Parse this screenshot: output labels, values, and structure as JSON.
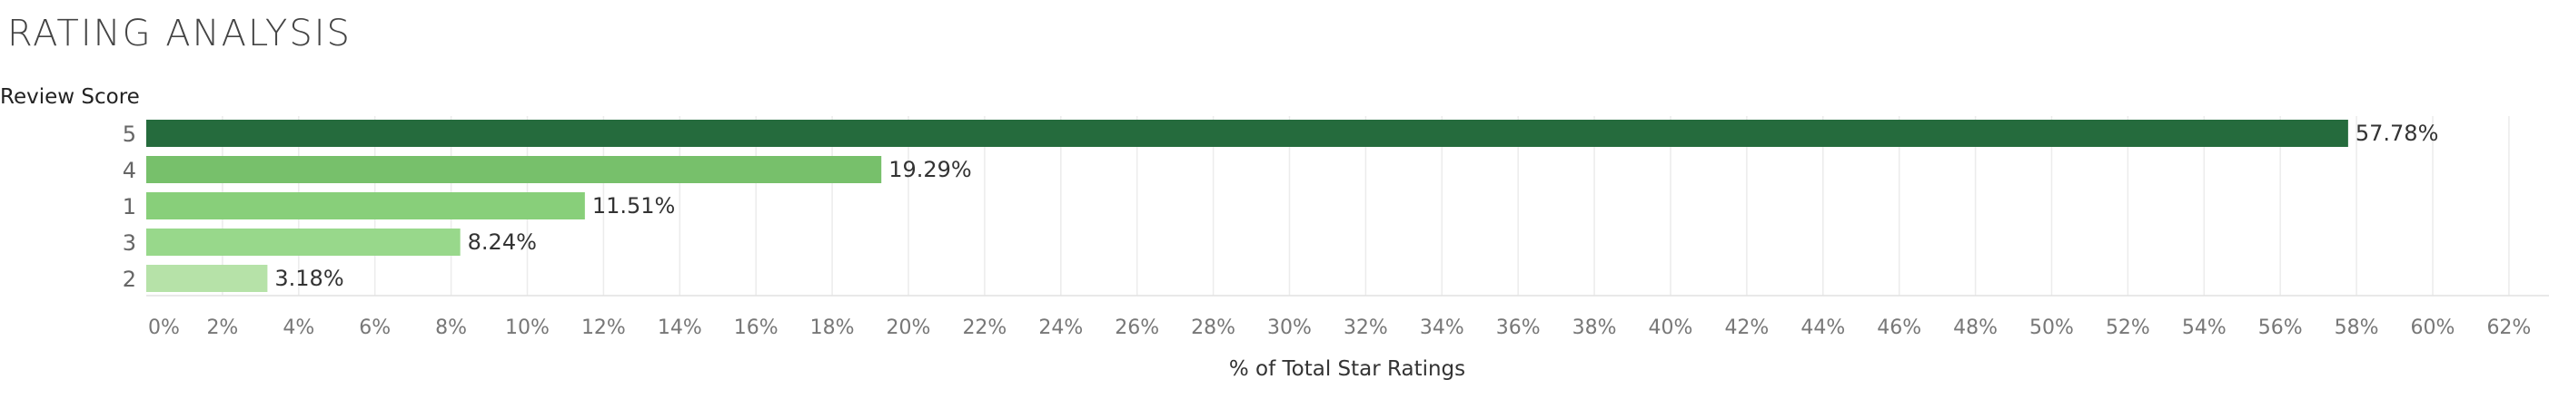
{
  "title": "RATING ANALYSIS",
  "chart_data": {
    "type": "bar",
    "orientation": "horizontal",
    "row_header": "Review Score",
    "categories": [
      "5",
      "4",
      "1",
      "3",
      "2"
    ],
    "values": [
      57.78,
      19.29,
      11.51,
      8.24,
      3.18
    ],
    "data_labels": [
      "57.78%",
      "19.29%",
      "11.51%",
      "8.24%",
      "3.18%"
    ],
    "colors": [
      "#256b3d",
      "#77c06b",
      "#88cf7a",
      "#98d88b",
      "#b6e2a8"
    ],
    "xlabel": "% of Total Star Ratings",
    "xlim": [
      0,
      63
    ],
    "xticks": [
      0,
      2,
      4,
      6,
      8,
      10,
      12,
      14,
      16,
      18,
      20,
      22,
      24,
      26,
      28,
      30,
      32,
      34,
      36,
      38,
      40,
      42,
      44,
      46,
      48,
      50,
      52,
      54,
      56,
      58,
      60,
      62
    ],
    "xtick_labels": [
      "0%",
      "2%",
      "4%",
      "6%",
      "8%",
      "10%",
      "12%",
      "14%",
      "16%",
      "18%",
      "20%",
      "22%",
      "24%",
      "26%",
      "28%",
      "30%",
      "32%",
      "34%",
      "36%",
      "38%",
      "40%",
      "42%",
      "44%",
      "46%",
      "48%",
      "50%",
      "52%",
      "54%",
      "56%",
      "58%",
      "60%",
      "62%"
    ],
    "grid": "vertical"
  }
}
